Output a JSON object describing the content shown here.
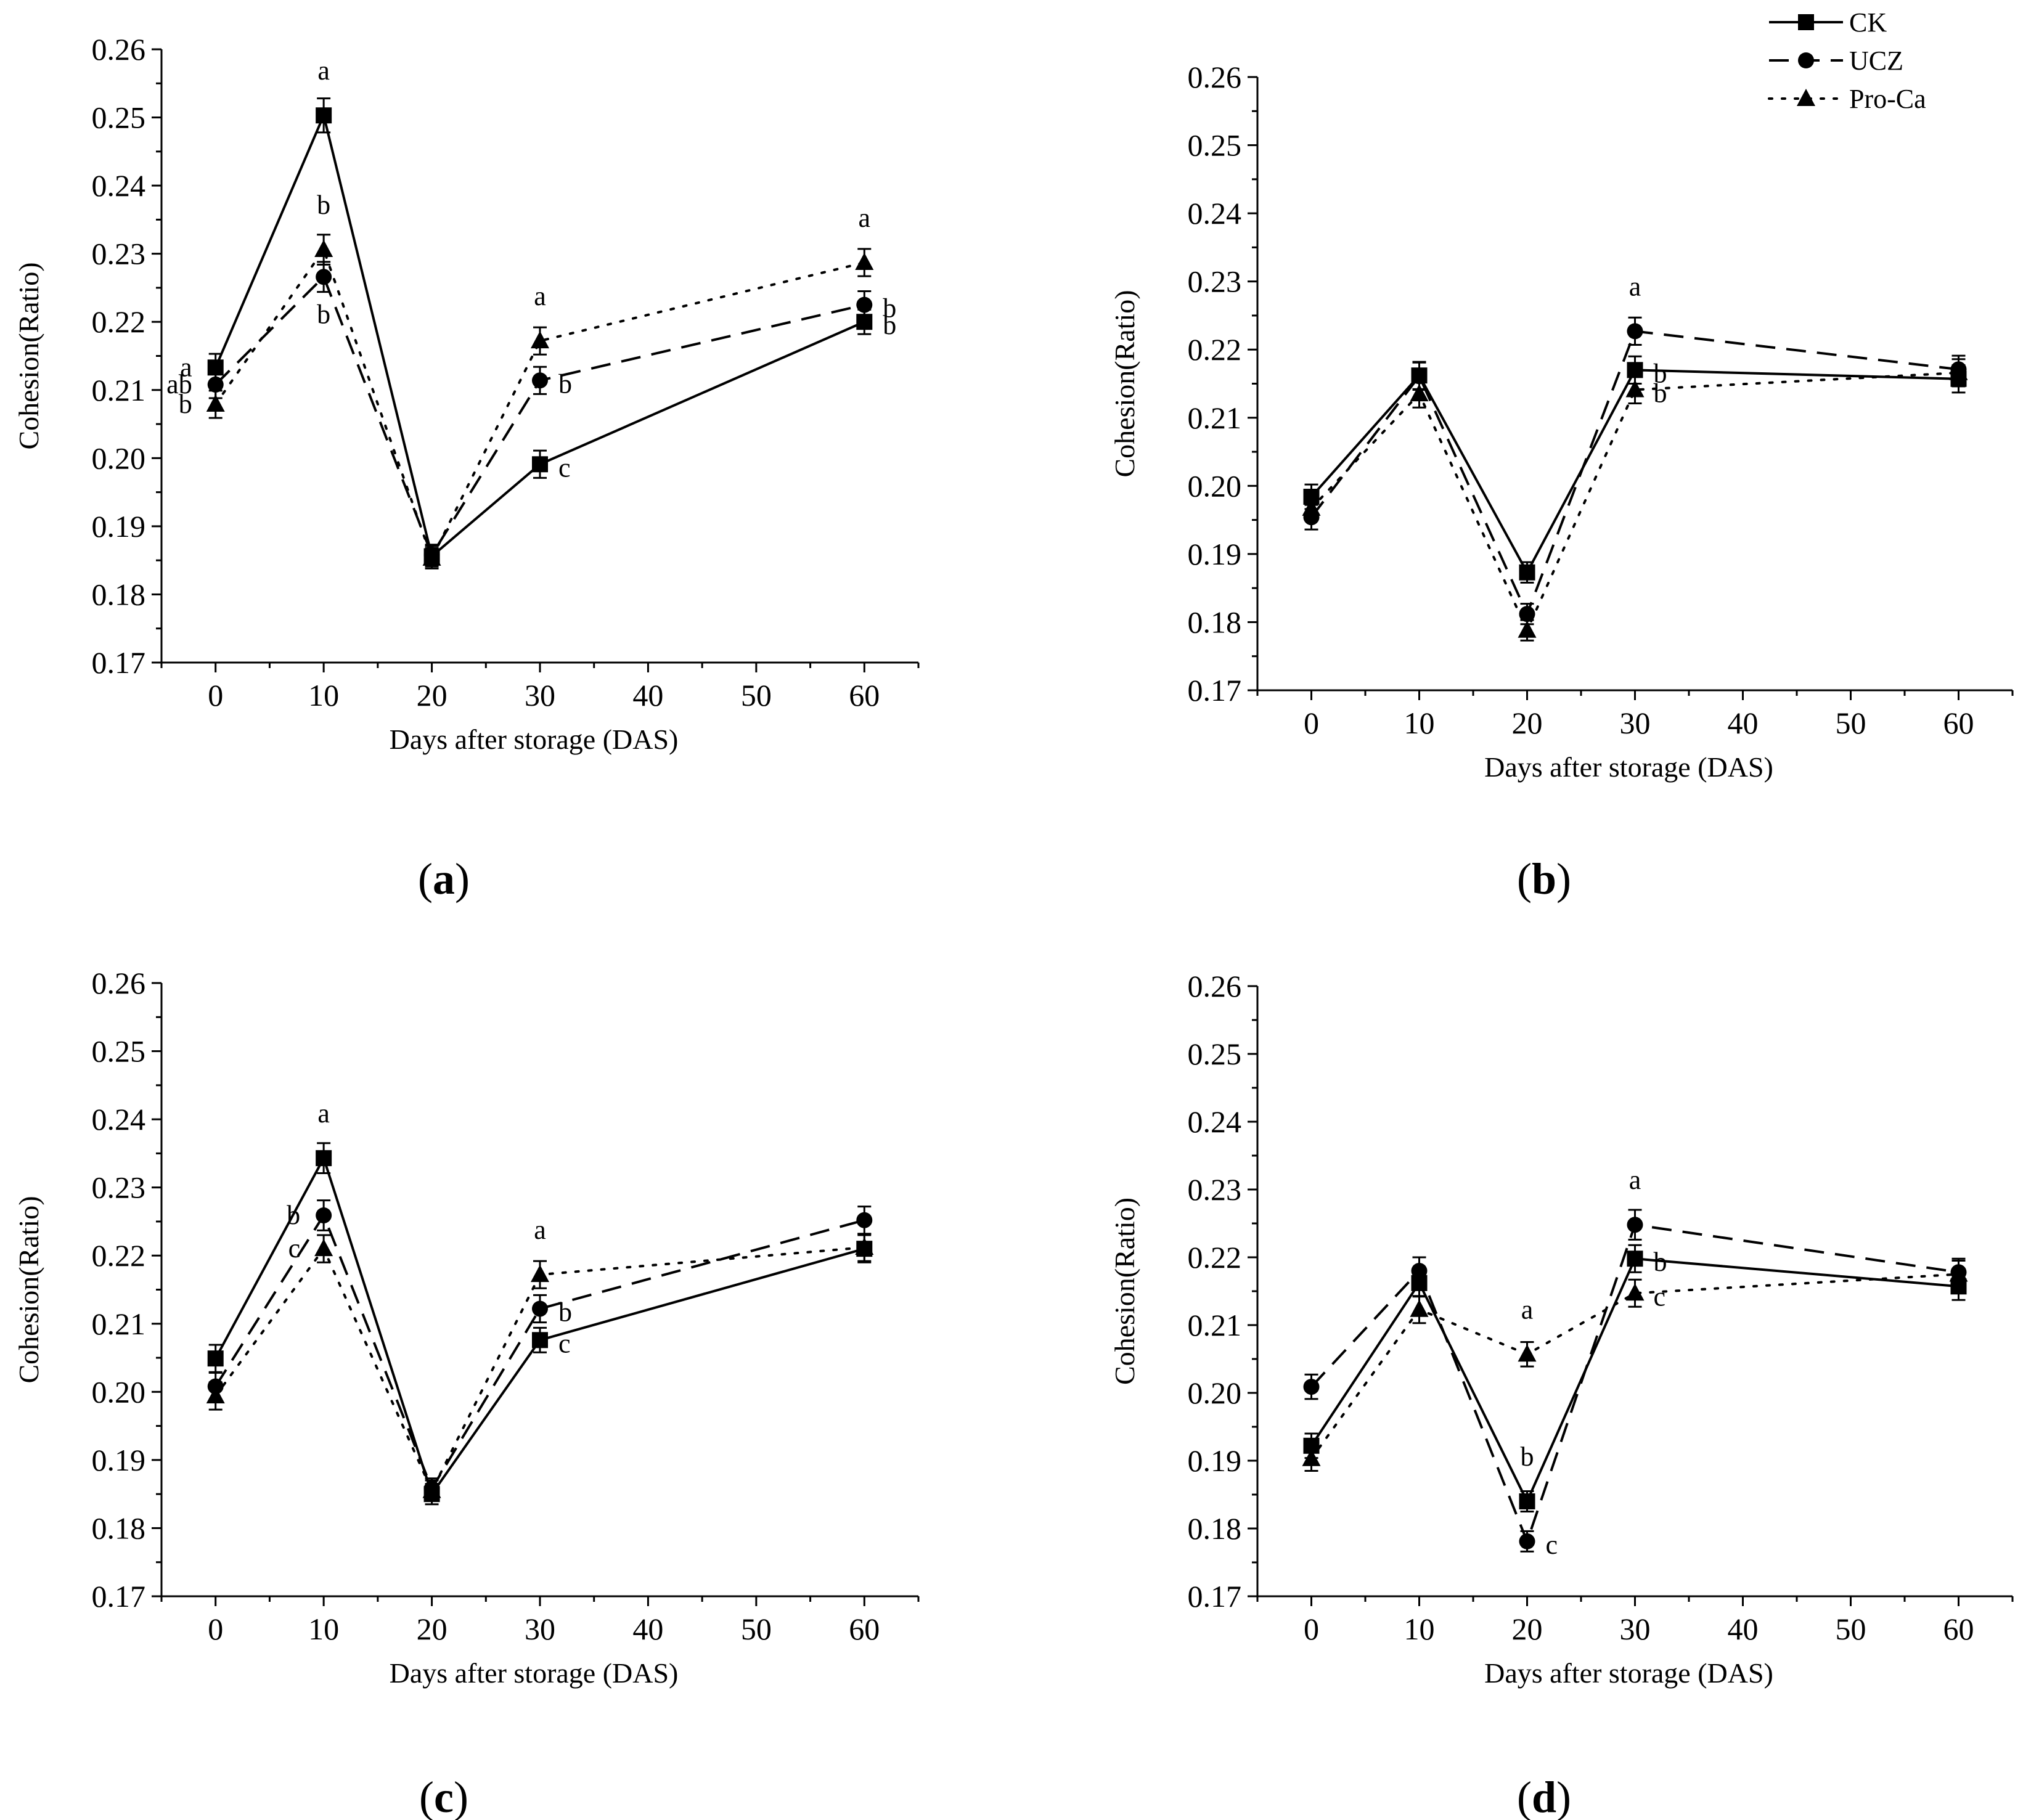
{
  "figure": {
    "legend": [
      {
        "name": "CK",
        "marker": "square",
        "dash": "solid"
      },
      {
        "name": "UCZ",
        "marker": "circle",
        "dash": "dashed"
      },
      {
        "name": "Pro-Ca",
        "marker": "triangle",
        "dash": "dotted"
      }
    ],
    "colors": {
      "line": "#000000",
      "background": "#ffffff"
    }
  },
  "chart_data": [
    {
      "panel": "(a)",
      "caption_letter": "a",
      "type": "line",
      "xlabel": "Days after storage (DAS)",
      "ylabel": "Cohesion(Ratio)",
      "xlim": [
        -5,
        65
      ],
      "ylim": [
        0.17,
        0.26
      ],
      "xticks": [
        0,
        10,
        20,
        30,
        40,
        50,
        60
      ],
      "yticks": [
        0.17,
        0.18,
        0.19,
        0.2,
        0.21,
        0.22,
        0.23,
        0.24,
        0.25,
        0.26
      ],
      "ytick_labels": [
        "0.17",
        "0.18",
        "0.19",
        "0.20",
        "0.21",
        "0.22",
        "0.23",
        "0.24",
        "0.25",
        "0.26"
      ],
      "x": [
        0,
        10,
        20,
        30,
        60
      ],
      "series": [
        {
          "name": "CK",
          "values": [
            0.2133,
            0.2503,
            0.1856,
            0.1991,
            0.22
          ],
          "errors": [
            0.002,
            0.0025,
            0.0015,
            0.002,
            0.0018
          ]
        },
        {
          "name": "UCZ",
          "values": [
            0.2108,
            0.2266,
            0.1858,
            0.2114,
            0.2225
          ],
          "errors": [
            0.002,
            0.0022,
            0.0015,
            0.002,
            0.002
          ]
        },
        {
          "name": "Pro-Ca",
          "values": [
            0.2079,
            0.2306,
            0.1853,
            0.2172,
            0.2287
          ],
          "errors": [
            0.002,
            0.0022,
            0.0015,
            0.002,
            0.002
          ]
        }
      ],
      "annotations": [
        {
          "text": "a",
          "x": 0,
          "y": 0.2133,
          "pos": "left"
        },
        {
          "text": "ab",
          "x": 0,
          "y": 0.2108,
          "pos": "left"
        },
        {
          "text": "b",
          "x": 0,
          "y": 0.2079,
          "pos": "left"
        },
        {
          "text": "a",
          "x": 10,
          "y": 0.2503,
          "pos": "above"
        },
        {
          "text": "b",
          "x": 10,
          "y": 0.2306,
          "pos": "above"
        },
        {
          "text": "b",
          "x": 10,
          "y": 0.2266,
          "pos": "below"
        },
        {
          "text": "a",
          "x": 30,
          "y": 0.2172,
          "pos": "above"
        },
        {
          "text": "b",
          "x": 30,
          "y": 0.2114,
          "pos": "right"
        },
        {
          "text": "c",
          "x": 30,
          "y": 0.1991,
          "pos": "right"
        },
        {
          "text": "a",
          "x": 60,
          "y": 0.2287,
          "pos": "above"
        },
        {
          "text": "b",
          "x": 60,
          "y": 0.2225,
          "pos": "right"
        },
        {
          "text": "b",
          "x": 60,
          "y": 0.22,
          "pos": "right"
        }
      ]
    },
    {
      "panel": "(b)",
      "caption_letter": "b",
      "type": "line",
      "xlabel": "Days after storage (DAS)",
      "ylabel": "Cohesion(Ratio)",
      "xlim": [
        -5,
        65
      ],
      "ylim": [
        0.17,
        0.26
      ],
      "xticks": [
        0,
        10,
        20,
        30,
        40,
        50,
        60
      ],
      "yticks": [
        0.17,
        0.18,
        0.19,
        0.2,
        0.21,
        0.22,
        0.23,
        0.24,
        0.25,
        0.26
      ],
      "ytick_labels": [
        "0.17",
        "0.18",
        "0.19",
        "0.20",
        "0.21",
        "0.22",
        "0.23",
        "0.24",
        "0.25",
        "0.26"
      ],
      "x": [
        0,
        10,
        20,
        30,
        60
      ],
      "series": [
        {
          "name": "CK",
          "values": [
            0.1984,
            0.2162,
            0.1873,
            0.217,
            0.2157
          ],
          "errors": [
            0.0018,
            0.002,
            0.0015,
            0.002,
            0.002
          ]
        },
        {
          "name": "UCZ",
          "values": [
            0.1954,
            0.2161,
            0.1812,
            0.2227,
            0.2171
          ],
          "errors": [
            0.0018,
            0.002,
            0.0015,
            0.002,
            0.002
          ]
        },
        {
          "name": "Pro-Ca",
          "values": [
            0.1967,
            0.2135,
            0.1788,
            0.2141,
            0.2166
          ],
          "errors": [
            0.0018,
            0.002,
            0.0015,
            0.002,
            0.002
          ]
        }
      ],
      "annotations": [
        {
          "text": "a",
          "x": 30,
          "y": 0.2227,
          "pos": "above"
        },
        {
          "text": "b",
          "x": 30,
          "y": 0.217,
          "pos": "right"
        },
        {
          "text": "b",
          "x": 30,
          "y": 0.2141,
          "pos": "right"
        }
      ]
    },
    {
      "panel": "(c)",
      "caption_letter": "c",
      "type": "line",
      "xlabel": "Days after storage (DAS)",
      "ylabel": "Cohesion(Ratio)",
      "xlim": [
        -5,
        65
      ],
      "ylim": [
        0.17,
        0.26
      ],
      "xticks": [
        0,
        10,
        20,
        30,
        40,
        50,
        60
      ],
      "yticks": [
        0.17,
        0.18,
        0.19,
        0.2,
        0.21,
        0.22,
        0.23,
        0.24,
        0.25,
        0.26
      ],
      "ytick_labels": [
        "0.17",
        "0.18",
        "0.19",
        "0.20",
        "0.21",
        "0.22",
        "0.23",
        "0.24",
        "0.25",
        "0.26"
      ],
      "x": [
        0,
        10,
        20,
        30,
        60
      ],
      "series": [
        {
          "name": "CK",
          "values": [
            0.2049,
            0.2343,
            0.185,
            0.2076,
            0.221
          ],
          "errors": [
            0.002,
            0.0022,
            0.0015,
            0.0018,
            0.002
          ]
        },
        {
          "name": "UCZ",
          "values": [
            0.2008,
            0.2259,
            0.1858,
            0.2122,
            0.2252
          ],
          "errors": [
            0.002,
            0.0022,
            0.0015,
            0.002,
            0.002
          ]
        },
        {
          "name": "Pro-Ca",
          "values": [
            0.1994,
            0.221,
            0.1855,
            0.2172,
            0.2212
          ],
          "errors": [
            0.002,
            0.002,
            0.0015,
            0.002,
            0.002
          ]
        }
      ],
      "annotations": [
        {
          "text": "a",
          "x": 10,
          "y": 0.2343,
          "pos": "above"
        },
        {
          "text": "b",
          "x": 10,
          "y": 0.2259,
          "pos": "left"
        },
        {
          "text": "c",
          "x": 10,
          "y": 0.221,
          "pos": "left"
        },
        {
          "text": "a",
          "x": 30,
          "y": 0.2172,
          "pos": "above"
        },
        {
          "text": "b",
          "x": 30,
          "y": 0.2122,
          "pos": "right"
        },
        {
          "text": "c",
          "x": 30,
          "y": 0.2076,
          "pos": "right"
        }
      ]
    },
    {
      "panel": "(d)",
      "caption_letter": "d",
      "type": "line",
      "xlabel": "Days after storage (DAS)",
      "ylabel": "Cohesion(Ratio)",
      "xlim": [
        -5,
        65
      ],
      "ylim": [
        0.17,
        0.26
      ],
      "xticks": [
        0,
        10,
        20,
        30,
        40,
        50,
        60
      ],
      "yticks": [
        0.17,
        0.18,
        0.19,
        0.2,
        0.21,
        0.22,
        0.23,
        0.24,
        0.25,
        0.26
      ],
      "ytick_labels": [
        "0.17",
        "0.18",
        "0.19",
        "0.20",
        "0.21",
        "0.22",
        "0.23",
        "0.24",
        "0.25",
        "0.26"
      ],
      "x": [
        0,
        10,
        20,
        30,
        60
      ],
      "series": [
        {
          "name": "CK",
          "values": [
            0.1922,
            0.2162,
            0.184,
            0.2198,
            0.2157
          ],
          "errors": [
            0.0018,
            0.002,
            0.0015,
            0.002,
            0.002
          ]
        },
        {
          "name": "UCZ",
          "values": [
            0.2009,
            0.218,
            0.1781,
            0.2248,
            0.2178
          ],
          "errors": [
            0.0018,
            0.002,
            0.0015,
            0.0022,
            0.002
          ]
        },
        {
          "name": "Pro-Ca",
          "values": [
            0.1903,
            0.2123,
            0.2057,
            0.2147,
            0.2175
          ],
          "errors": [
            0.0018,
            0.002,
            0.0018,
            0.002,
            0.002
          ]
        }
      ],
      "annotations": [
        {
          "text": "a",
          "x": 20,
          "y": 0.2057,
          "pos": "above"
        },
        {
          "text": "b",
          "x": 20,
          "y": 0.184,
          "pos": "above"
        },
        {
          "text": "c",
          "x": 20,
          "y": 0.1781,
          "pos": "right"
        },
        {
          "text": "a",
          "x": 30,
          "y": 0.2248,
          "pos": "above"
        },
        {
          "text": "b",
          "x": 30,
          "y": 0.2198,
          "pos": "right"
        },
        {
          "text": "c",
          "x": 30,
          "y": 0.2147,
          "pos": "right"
        }
      ]
    }
  ]
}
